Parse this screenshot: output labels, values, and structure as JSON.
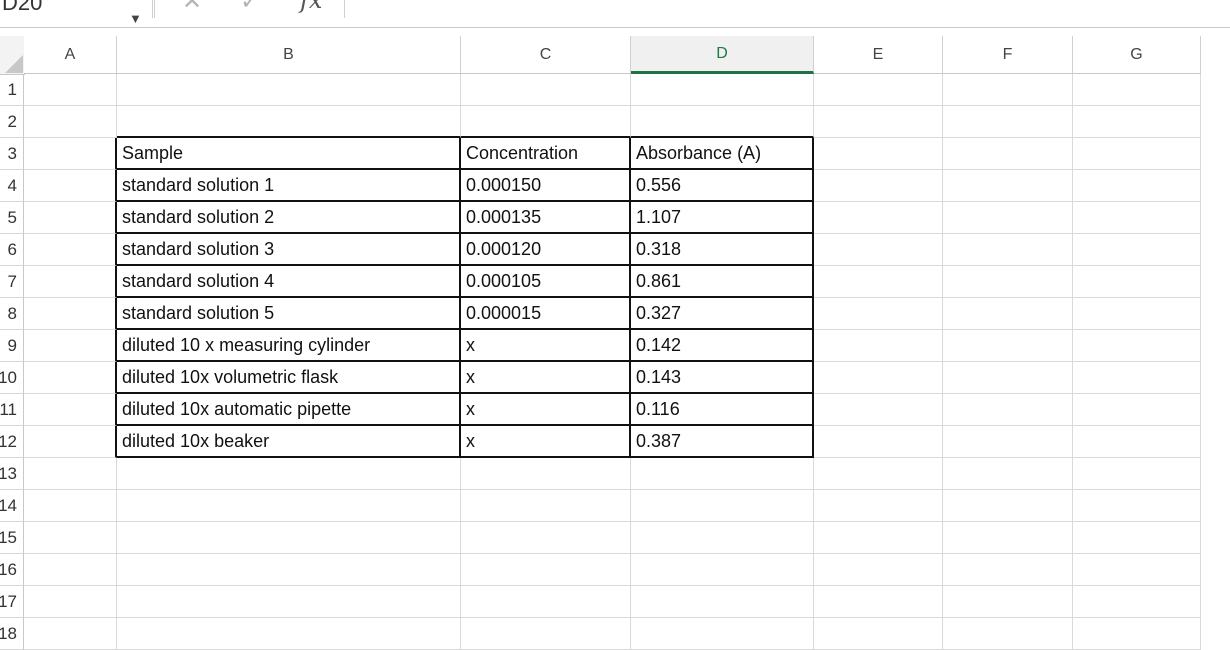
{
  "formula_bar": {
    "name_box": "D20",
    "dropdown_icon": "triangle-down-icon",
    "cancel_icon": "x-icon",
    "enter_icon": "check-icon",
    "fx_label": "fx",
    "formula_value": ""
  },
  "columns": [
    {
      "label": "A"
    },
    {
      "label": "B"
    },
    {
      "label": "C"
    },
    {
      "label": "D"
    },
    {
      "label": "E"
    },
    {
      "label": "F"
    },
    {
      "label": "G"
    }
  ],
  "active_column": "D",
  "active_color": "#1f7244",
  "rows": [
    "1",
    "2",
    "3",
    "4",
    "5",
    "6",
    "7",
    "8",
    "9",
    "10",
    "11",
    "12",
    "13",
    "14",
    "15",
    "16",
    "17",
    "18"
  ],
  "table": {
    "header": [
      "Sample",
      "Concentration",
      "Absorbance (A)"
    ],
    "rows": [
      [
        "standard solution 1",
        "0.000150",
        "0.556"
      ],
      [
        "standard solution 2",
        "0.000135",
        "1.107"
      ],
      [
        "standard solution 3",
        "0.000120",
        "0.318"
      ],
      [
        "standard solution 4",
        "0.000105",
        "0.861"
      ],
      [
        "standard solution 5",
        "0.000015",
        "0.327"
      ],
      [
        "diluted 10 x measuring cylinder",
        "x",
        "0.142"
      ],
      [
        "diluted 10x volumetric flask",
        "x",
        "0.143"
      ],
      [
        "diluted 10x automatic pipette",
        "x",
        "0.116"
      ],
      [
        "diluted 10x beaker",
        "x",
        "0.387"
      ]
    ]
  }
}
